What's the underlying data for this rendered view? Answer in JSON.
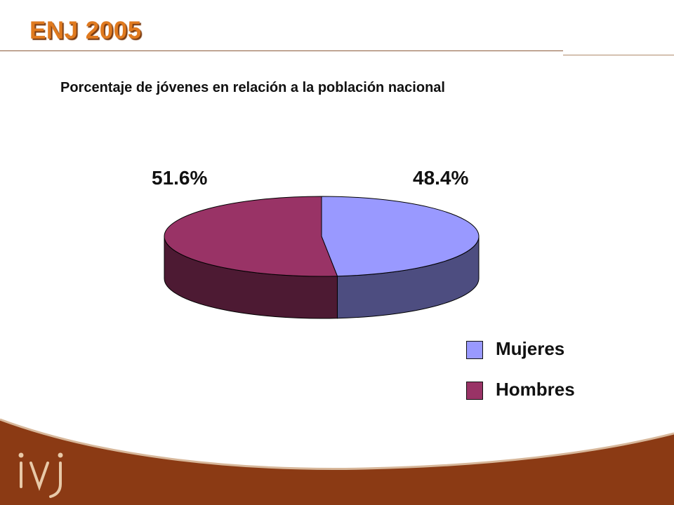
{
  "slide": {
    "title": "ENJ 2005"
  },
  "chart_data": {
    "type": "pie",
    "title": "Porcentaje de jóvenes en relación a la población nacional",
    "series": [
      {
        "name": "Mujeres",
        "value": 48.4,
        "label": "48.4%",
        "color": "#9999ff",
        "side_color": "#4d4d80"
      },
      {
        "name": "Hombres",
        "value": 51.6,
        "label": "51.6%",
        "color": "#993366",
        "side_color": "#4d1a33"
      }
    ],
    "legend_position": "bottom-right"
  },
  "logo": {
    "text": "ivj",
    "icon": "ivj-logo-icon"
  },
  "colors": {
    "title": "#e07a1f",
    "footer": "#8b3a14"
  }
}
